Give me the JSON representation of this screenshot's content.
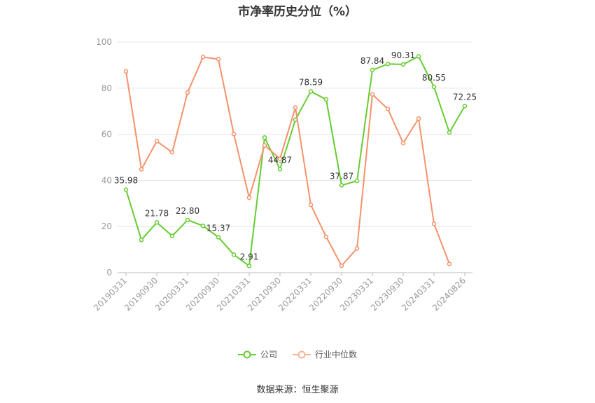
{
  "title": "市净率历史分位（%）",
  "source": "数据来源：恒生聚源",
  "colors": {
    "company": "#66cc33",
    "industry": "#f5926b",
    "grid": "#e6e6e6",
    "axis": "#999999"
  },
  "chart_data": {
    "type": "line",
    "title": "市净率历史分位（%）",
    "ylim": [
      0,
      100
    ],
    "yticks": [
      0,
      20,
      40,
      60,
      80,
      100
    ],
    "x_tick_labels": [
      "20190331",
      "20190930",
      "20200331",
      "20200930",
      "20210331",
      "20210930",
      "20220331",
      "20220930",
      "20230331",
      "20230930",
      "20240331",
      "20240826"
    ],
    "x_tick_positions": [
      0,
      2,
      4,
      6,
      8,
      10,
      12,
      14,
      16,
      18,
      20,
      22
    ],
    "legend_position": "bottom",
    "grid": true,
    "series": [
      {
        "name": "公司",
        "color": "#66cc33",
        "values": [
          35.98,
          14.2,
          21.78,
          15.9,
          22.8,
          20.3,
          15.37,
          7.8,
          2.91,
          58.6,
          44.87,
          66.3,
          78.59,
          75.1,
          37.87,
          39.8,
          87.84,
          90.5,
          90.31,
          93.8,
          80.55,
          60.8,
          72.25
        ],
        "labels": [
          "35.98",
          "",
          "21.78",
          "",
          "22.80",
          "",
          "15.37",
          "",
          "2.91",
          "",
          "44.87",
          "",
          "78.59",
          "",
          "37.87",
          "",
          "87.84",
          "",
          "90.31",
          "",
          "80.55",
          "",
          "72.25"
        ]
      },
      {
        "name": "行业中位数",
        "color": "#f5926b",
        "values": [
          87.3,
          44.8,
          57.0,
          52.2,
          78.1,
          93.5,
          92.6,
          60.1,
          32.5,
          55.2,
          49.4,
          71.6,
          29.4,
          15.5,
          3.0,
          10.5,
          77.3,
          71.0,
          56.2,
          66.8,
          21.2,
          3.8,
          null
        ]
      }
    ]
  }
}
